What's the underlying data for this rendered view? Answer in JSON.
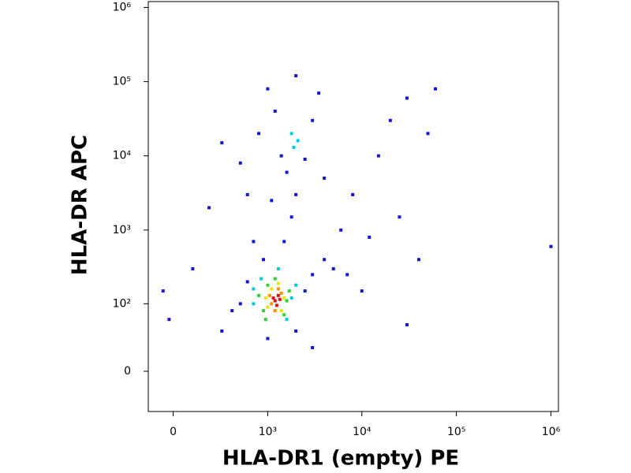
{
  "chart_data": {
    "type": "scatter",
    "x_label": "HLA-DR1 (empty) PE",
    "y_label": "HLA-DR APC",
    "scale": "biexponential",
    "xlim": [
      -130,
      1200000
    ],
    "ylim": [
      -40,
      1200000
    ],
    "xticks": [
      0,
      {
        "value": 1000,
        "label": "10³"
      },
      {
        "value": 10000,
        "label": "10⁴"
      },
      {
        "value": 100000,
        "label": "10⁵"
      },
      {
        "value": 1000000,
        "label": "10⁶"
      }
    ],
    "yticks": [
      0,
      {
        "value": 100,
        "label": "10²"
      },
      {
        "value": 1000,
        "label": "10³"
      },
      {
        "value": 10000,
        "label": "10⁴"
      },
      {
        "value": 100000,
        "label": "10⁵"
      },
      {
        "value": 1000000,
        "label": "10⁶"
      }
    ],
    "series": [
      {
        "color": "#1414d2",
        "x": [
          500,
          400,
          600,
          2500,
          3000,
          4000,
          5000,
          1500,
          1800,
          2000,
          1600,
          1400,
          2500,
          3000,
          1200,
          1000,
          2000,
          3500,
          800,
          500,
          300,
          600,
          200,
          100,
          -50,
          -20,
          300,
          1000,
          2000,
          6000,
          8000,
          15000,
          20000,
          30000,
          50000,
          60000,
          40000,
          25000,
          12000,
          7000,
          3000,
          900,
          1100,
          700,
          4000,
          10000,
          30000,
          1000000
        ],
        "values": [
          100,
          80,
          200,
          150,
          250,
          400,
          300,
          700,
          1500,
          3000,
          6000,
          10000,
          9000,
          30000,
          40000,
          80000,
          120000,
          70000,
          20000,
          8000,
          15000,
          3000,
          2000,
          300,
          150,
          60,
          40,
          30,
          40,
          1000,
          3000,
          10000,
          30000,
          60000,
          20000,
          80000,
          400,
          1500,
          800,
          250,
          20,
          400,
          2500,
          700,
          5000,
          150,
          50,
          600
        ]
      },
      {
        "color": "#00c8e0",
        "x": [
          700,
          1800,
          850,
          1600,
          700,
          1300,
          2000,
          1900,
          2100,
          1800
        ],
        "values": [
          100,
          120,
          220,
          60,
          160,
          300,
          180,
          13000,
          16000,
          20000
        ]
      },
      {
        "color": "#30d030",
        "x": [
          900,
          1600,
          1000,
          1500,
          800,
          1200,
          1700,
          950
        ],
        "values": [
          80,
          110,
          180,
          70,
          130,
          220,
          150,
          60
        ]
      },
      {
        "color": "#e8e800",
        "x": [
          1000,
          1500,
          1100,
          1400,
          950,
          1300
        ],
        "values": [
          90,
          120,
          160,
          80,
          120,
          190
        ]
      },
      {
        "color": "#ff9000",
        "x": [
          1100,
          1400,
          1200,
          1300,
          1050
        ],
        "values": [
          100,
          140,
          80,
          160,
          130
        ]
      },
      {
        "color": "#e01010",
        "x": [
          1200,
          1300,
          1250,
          1150,
          1350
        ],
        "values": [
          110,
          130,
          95,
          120,
          115
        ]
      }
    ]
  }
}
